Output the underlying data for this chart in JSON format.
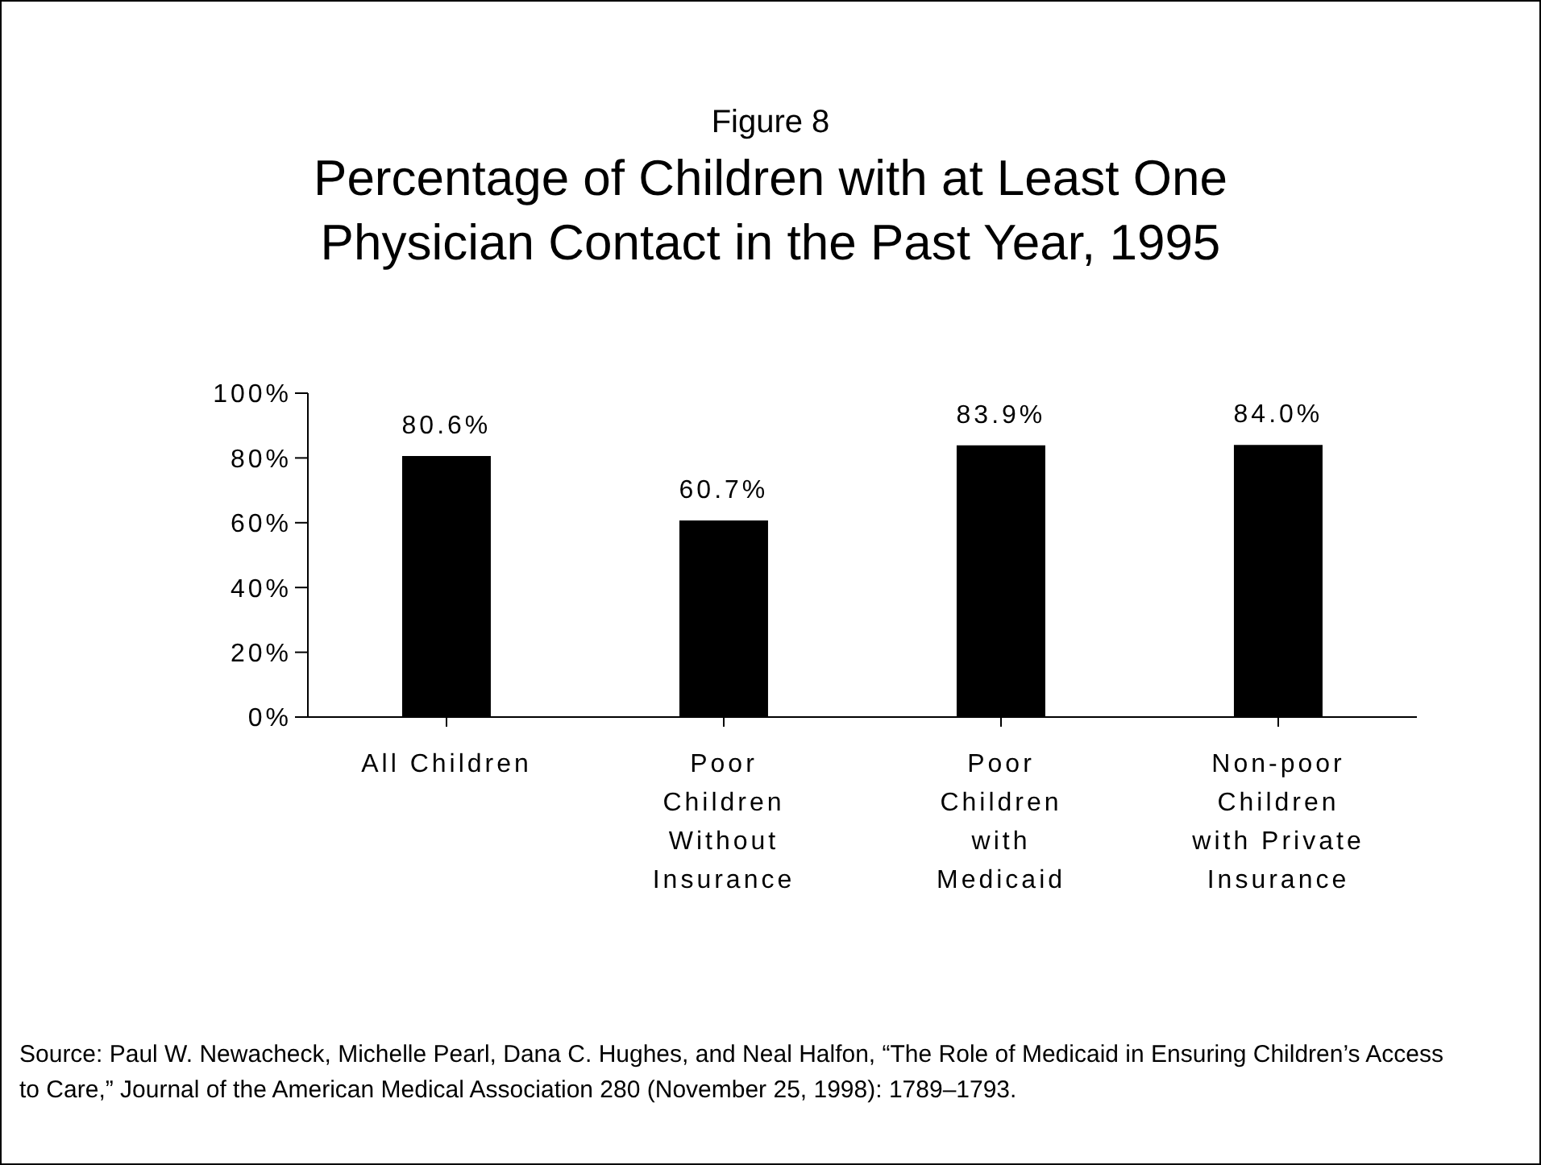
{
  "chart_data": {
    "type": "bar",
    "subtitle": "Figure 8",
    "title": "Percentage of Children with at Least One Physician Contact in the Past Year, 1995",
    "categories": [
      "All Children",
      "Poor Children Without Insurance",
      "Poor Children with Medicaid",
      "Non-poor Children with Private Insurance"
    ],
    "values": [
      80.6,
      60.7,
      83.9,
      84.0
    ],
    "value_labels": [
      "80.6%",
      "60.7%",
      "83.9%",
      "84.0%"
    ],
    "color": "#000000",
    "ylim": [
      0,
      100
    ],
    "yticks": [
      {
        "value": 0,
        "label": "0%"
      },
      {
        "value": 20,
        "label": "20%"
      },
      {
        "value": 40,
        "label": "40%"
      },
      {
        "value": 60,
        "label": "60%"
      },
      {
        "value": 80,
        "label": "80%"
      },
      {
        "value": 100,
        "label": "100%"
      }
    ],
    "grid": false,
    "legend": false,
    "annotations": [
      "Source:  Paul W. Newacheck, Michelle Pearl, Dana C. Hughes, and Neal Halfon, “The Role of Medicaid in Ensuring Children’s Access to Care,” Journal of the American Medical Association 280 (November 25, 1998): 1789–1793."
    ]
  }
}
